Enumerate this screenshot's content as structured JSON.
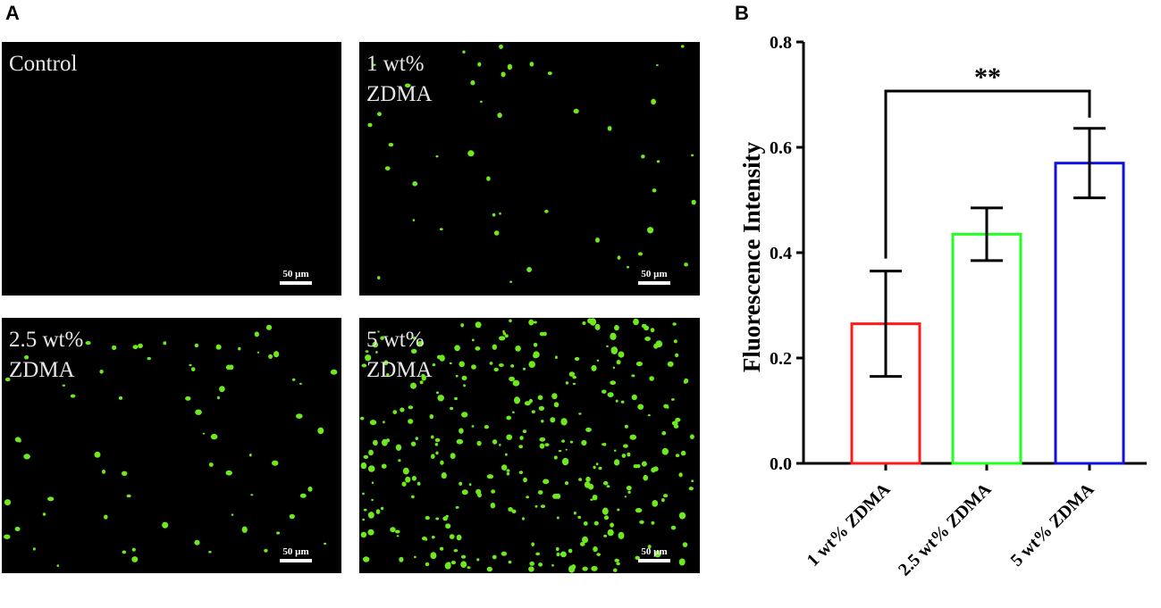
{
  "panel_a": {
    "letter": "A",
    "images": [
      {
        "label": "Control",
        "scale_bar": "50 µm",
        "color": "#6ee81f"
      },
      {
        "label": "1 wt%\nZDMA",
        "scale_bar": "50 µm",
        "color": "#6ee81f"
      },
      {
        "label": "2.5 wt%\nZDMA",
        "scale_bar": "50 µm",
        "color": "#6ee81f"
      },
      {
        "label": "5 wt%\nZDMA",
        "scale_bar": "50 µm",
        "color": "#6ee81f"
      }
    ]
  },
  "panel_b": {
    "letter": "B"
  },
  "chart_data": {
    "type": "bar",
    "categories": [
      "1 wt% ZDMA",
      "2.5 wt% ZDMA",
      "5 wt% ZDMA"
    ],
    "values": [
      0.265,
      0.435,
      0.57
    ],
    "error": [
      0.1,
      0.05,
      0.066
    ],
    "bar_colors": [
      "#ff1a1a",
      "#22ff22",
      "#1010e0"
    ],
    "ylabel": "Fluorescence Intensity",
    "xlabel": "",
    "ylim": [
      0,
      0.8
    ],
    "yticks": [
      "0.0",
      "0.2",
      "0.4",
      "0.6",
      "0.8"
    ],
    "significance": {
      "label": "**",
      "from": 0,
      "to": 2
    },
    "grid": false,
    "bar_fill": "none"
  }
}
